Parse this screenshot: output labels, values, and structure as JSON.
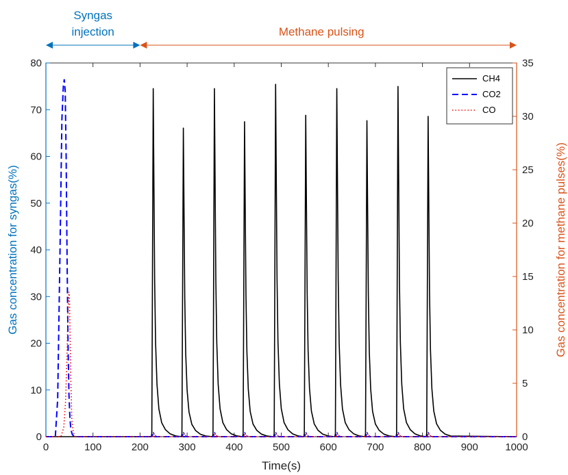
{
  "chart_data": {
    "type": "line",
    "xlabel": "Time(s)",
    "ylabel_left": "Gas concentration for syngas(%)",
    "ylabel_right": "Gas concentration for methane pulses(%)",
    "xlim": [
      0,
      1000
    ],
    "ylim_left": [
      0,
      80
    ],
    "ylim_right": [
      0,
      35
    ],
    "xticks": [
      0,
      100,
      200,
      300,
      400,
      500,
      600,
      700,
      800,
      900,
      1000
    ],
    "yticks_left": [
      0,
      10,
      20,
      30,
      40,
      50,
      60,
      70,
      80
    ],
    "yticks_right": [
      0,
      5,
      10,
      15,
      20,
      25,
      30,
      35
    ],
    "grid": false,
    "legend_position": "top-right",
    "annotations": [
      {
        "text_lines": [
          "Syngas",
          "injection"
        ],
        "x_start": 0,
        "x_end": 200,
        "color": "#0072BD"
      },
      {
        "text_lines": [
          "Methane pulsing"
        ],
        "x_start": 200,
        "x_end": 1000,
        "color": "#D95319"
      }
    ],
    "series": [
      {
        "name": "CH4",
        "axis": "right",
        "color": "#000000",
        "style": "solid",
        "pulse_times": [
          228,
          292,
          358,
          422,
          488,
          552,
          618,
          682,
          748,
          812
        ],
        "pulse_peaks": [
          32.6,
          28.9,
          32.6,
          29.5,
          33.0,
          30.1,
          32.6,
          29.6,
          32.8,
          30.0
        ]
      },
      {
        "name": "CO2",
        "axis": "left",
        "color": "#0000FF",
        "style": "dashed",
        "x": [
          0,
          20,
          25,
          30,
          34,
          37,
          39,
          41,
          43,
          45,
          47,
          49,
          51,
          53,
          56,
          60,
          1000
        ],
        "y": [
          0,
          0,
          8,
          40,
          68,
          75,
          76.5,
          74,
          60,
          38,
          20,
          9,
          4,
          1.5,
          0.5,
          0,
          0
        ]
      },
      {
        "name": "CO",
        "axis": "left",
        "color": "#FF0000",
        "style": "dotted",
        "x": [
          0,
          32,
          38,
          42,
          45,
          47,
          49,
          50,
          51,
          53,
          55,
          58,
          62,
          1000
        ],
        "y": [
          0,
          0,
          2,
          8,
          18,
          27,
          31,
          30,
          24,
          12,
          4,
          1,
          0,
          0
        ]
      }
    ]
  }
}
